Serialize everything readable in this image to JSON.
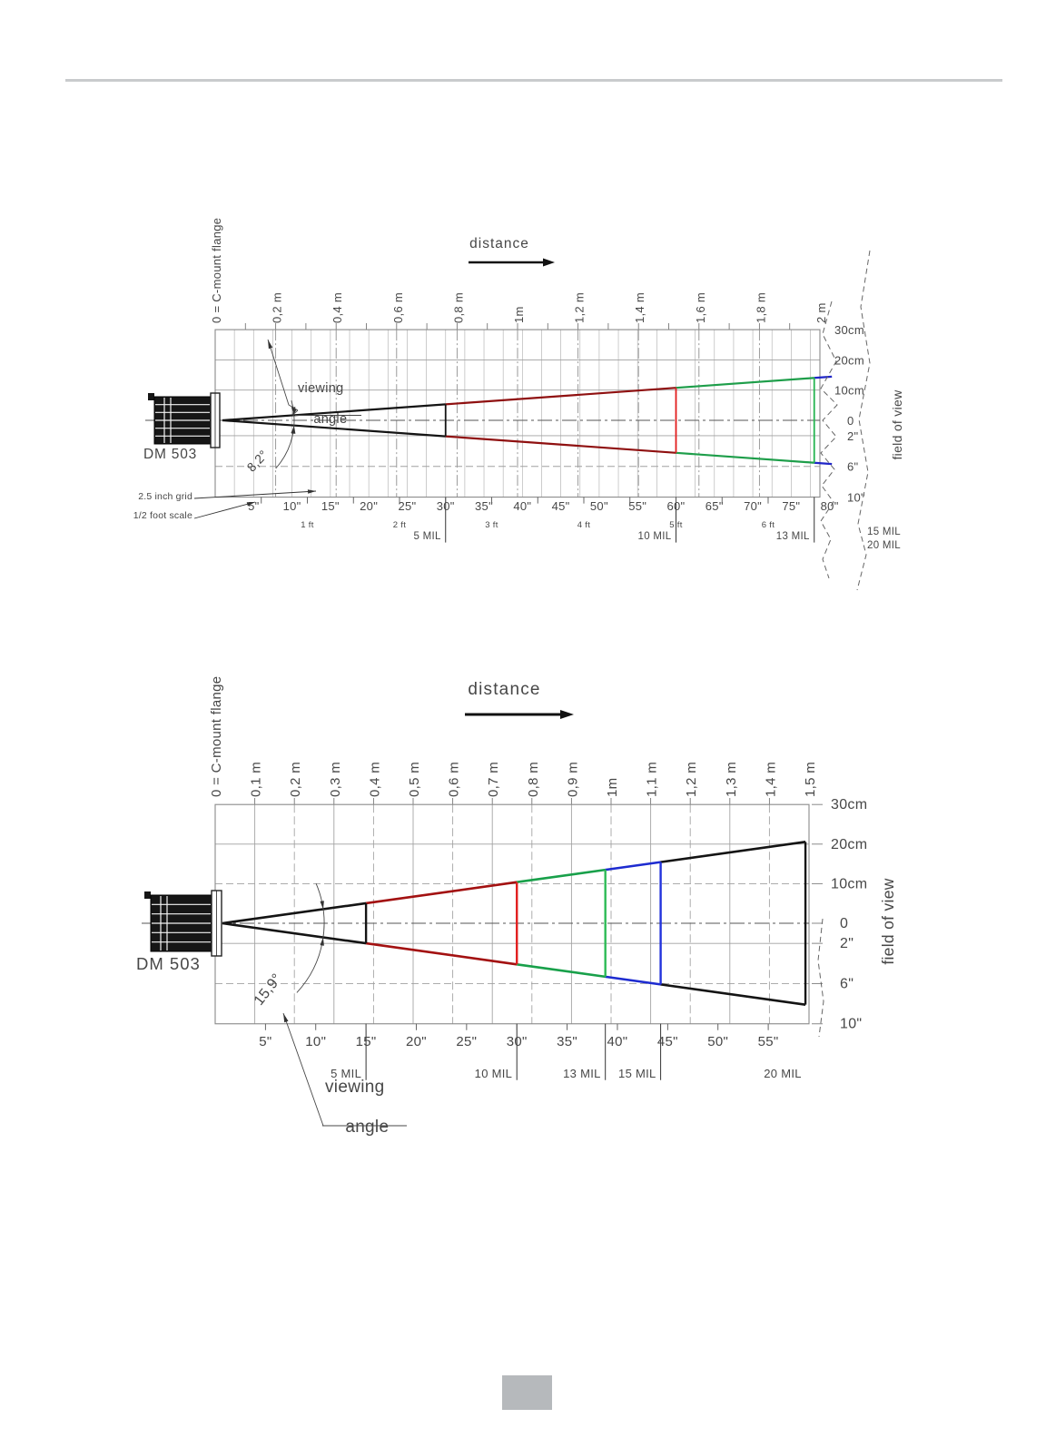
{
  "diagrams": [
    {
      "model_label": "DM 503",
      "flange_label": "0 = C-mount flange",
      "distance_label": "distance",
      "fov_axis_label": "field of view",
      "viewing_angle_word1": "viewing",
      "viewing_angle_word2": "angle",
      "viewing_angle_text": "8,2°",
      "viewing_angle_deg": 8.2,
      "grid_note": "2.5 inch grid",
      "scale_note": "1/2 foot scale",
      "distance_ticks_m": [
        "0,2 m",
        "0,4 m",
        "0,6 m",
        "0,8 m",
        "1m",
        "1,2 m",
        "1,4 m",
        "1,6 m",
        "1,8 m",
        "2 m"
      ],
      "distance_ticks_in": [
        "5\"",
        "10\"",
        "15\"",
        "20\"",
        "25\"",
        "30\"",
        "35\"",
        "40\"",
        "45\"",
        "50\"",
        "55\"",
        "60\"",
        "65\"",
        "70\"",
        "75\"",
        "80\""
      ],
      "distance_ticks_ft": [
        "1 ft",
        "2 ft",
        "3 ft",
        "4 ft",
        "5 ft",
        "6 ft"
      ],
      "fov_ticks": [
        "30cm",
        "20cm",
        "10cm",
        "0",
        "2\"",
        "6\"",
        "10\""
      ],
      "mil_markers": [
        {
          "label": "5 MIL",
          "inches": 30
        },
        {
          "label": "10 MIL",
          "inches": 60
        },
        {
          "label": "13 MIL",
          "inches": 78
        }
      ],
      "offscale_mil_labels": [
        "15 MIL",
        "20 MIL"
      ],
      "cone_segments": [
        {
          "from_in": 0,
          "to_in": 30,
          "color": "#141414"
        },
        {
          "from_in": 30,
          "to_in": 60,
          "color": "#8f1010"
        },
        {
          "from_in": 60,
          "to_in": 78,
          "color": "#1e9e4a"
        },
        {
          "from_in": 78,
          "to_in": 80.3,
          "color": "#2026c8"
        }
      ],
      "boundary_lines": [
        {
          "inches": 30,
          "color": "#141414"
        },
        {
          "inches": 60,
          "color": "#e21d1d"
        },
        {
          "inches": 78,
          "color": "#27b552"
        }
      ]
    },
    {
      "model_label": "DM 503",
      "flange_label": "0 = C-mount flange",
      "distance_label": "distance",
      "fov_axis_label": "field of view",
      "viewing_angle_word1": "viewing",
      "viewing_angle_word2": "angle",
      "viewing_angle_text": "15,9°",
      "viewing_angle_deg": 15.9,
      "distance_ticks_m": [
        "0,1 m",
        "0,2 m",
        "0,3 m",
        "0,4 m",
        "0,5 m",
        "0,6 m",
        "0,7 m",
        "0,8 m",
        "0,9 m",
        "1m",
        "1,1 m",
        "1,2 m",
        "1,3 m",
        "1,4 m",
        "1,5 m"
      ],
      "distance_ticks_in": [
        "5\"",
        "10\"",
        "15\"",
        "20\"",
        "25\"",
        "30\"",
        "35\"",
        "40\"",
        "45\"",
        "50\"",
        "55\""
      ],
      "fov_ticks": [
        "30cm",
        "20cm",
        "10cm",
        "0",
        "2\"",
        "6\"",
        "10\""
      ],
      "mil_markers": [
        {
          "label": "5 MIL",
          "inches": 15
        },
        {
          "label": "10 MIL",
          "inches": 30
        },
        {
          "label": "13 MIL",
          "inches": 38.8
        },
        {
          "label": "15 MIL",
          "inches": 44.3
        }
      ],
      "endcap_mil_label": "20 MIL",
      "cone_segments": [
        {
          "from_in": 0,
          "to_in": 15,
          "color": "#141414"
        },
        {
          "from_in": 15,
          "to_in": 30,
          "color": "#a31111"
        },
        {
          "from_in": 30,
          "to_in": 38.8,
          "color": "#18a04a"
        },
        {
          "from_in": 38.8,
          "to_in": 44.3,
          "color": "#1d2bd0"
        },
        {
          "from_in": 44.3,
          "to_in": 58.7,
          "color": "#141414"
        }
      ],
      "boundary_lines": [
        {
          "inches": 15,
          "color": "#141414"
        },
        {
          "inches": 30,
          "color": "#e21d1d"
        },
        {
          "inches": 38.8,
          "color": "#2dbb55"
        },
        {
          "inches": 44.3,
          "color": "#2233dd"
        },
        {
          "inches": 58.7,
          "color": "#141414"
        }
      ]
    }
  ]
}
